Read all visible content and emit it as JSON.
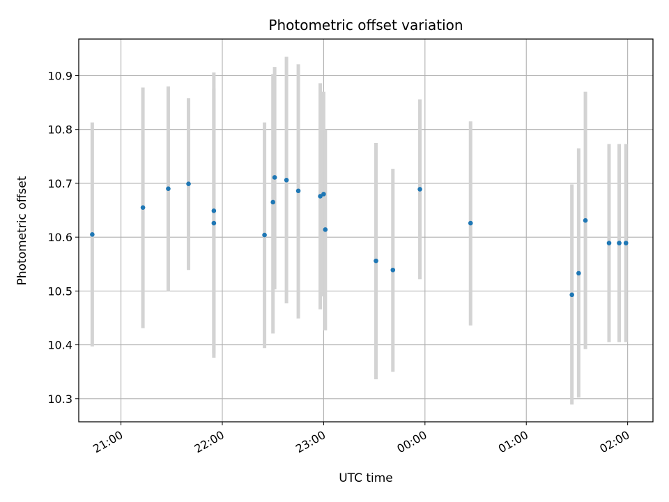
{
  "chart_data": {
    "type": "scatter",
    "title": "Photometric offset variation",
    "xlabel": "UTC time",
    "ylabel": "Photometric offset",
    "xlim": [
      "20:35",
      "02:15"
    ],
    "ylim": [
      10.257,
      10.968
    ],
    "grid": true,
    "x_ticks": [
      "21:00",
      "22:00",
      "23:00",
      "00:00",
      "01:00",
      "02:00"
    ],
    "y_ticks": [
      "10.3",
      "10.4",
      "10.5",
      "10.6",
      "10.7",
      "10.8",
      "10.9"
    ],
    "point_color": "#1f77b4",
    "errorbar_color": "#d3d3d3",
    "series": [
      {
        "points": [
          {
            "time": "20:43",
            "y": 10.605,
            "ylow": 10.397,
            "yhigh": 10.813
          },
          {
            "time": "21:13",
            "y": 10.655,
            "ylow": 10.431,
            "yhigh": 10.878
          },
          {
            "time": "21:28",
            "y": 10.69,
            "ylow": 10.5,
            "yhigh": 10.88
          },
          {
            "time": "21:40",
            "y": 10.699,
            "ylow": 10.539,
            "yhigh": 10.858
          },
          {
            "time": "21:55",
            "y": 10.649,
            "ylow": 10.384,
            "yhigh": 10.906
          },
          {
            "time": "21:55",
            "y": 10.626,
            "ylow": 10.376,
            "yhigh": 10.876
          },
          {
            "time": "22:25",
            "y": 10.604,
            "ylow": 10.394,
            "yhigh": 10.813
          },
          {
            "time": "22:30",
            "y": 10.665,
            "ylow": 10.421,
            "yhigh": 10.903
          },
          {
            "time": "22:31",
            "y": 10.711,
            "ylow": 10.503,
            "yhigh": 10.916
          },
          {
            "time": "22:38",
            "y": 10.706,
            "ylow": 10.477,
            "yhigh": 10.935
          },
          {
            "time": "22:45",
            "y": 10.686,
            "ylow": 10.449,
            "yhigh": 10.921
          },
          {
            "time": "22:58",
            "y": 10.676,
            "ylow": 10.466,
            "yhigh": 10.886
          },
          {
            "time": "23:00",
            "y": 10.68,
            "ylow": 10.49,
            "yhigh": 10.87
          },
          {
            "time": "23:01",
            "y": 10.614,
            "ylow": 10.427,
            "yhigh": 10.8
          },
          {
            "time": "23:31",
            "y": 10.556,
            "ylow": 10.336,
            "yhigh": 10.775
          },
          {
            "time": "23:41",
            "y": 10.539,
            "ylow": 10.35,
            "yhigh": 10.727
          },
          {
            "time": "23:57",
            "y": 10.689,
            "ylow": 10.522,
            "yhigh": 10.856
          },
          {
            "time": "00:27",
            "y": 10.626,
            "ylow": 10.436,
            "yhigh": 10.815
          },
          {
            "time": "01:27",
            "y": 10.493,
            "ylow": 10.289,
            "yhigh": 10.698
          },
          {
            "time": "01:31",
            "y": 10.533,
            "ylow": 10.302,
            "yhigh": 10.765
          },
          {
            "time": "01:35",
            "y": 10.631,
            "ylow": 10.392,
            "yhigh": 10.87
          },
          {
            "time": "01:49",
            "y": 10.589,
            "ylow": 10.405,
            "yhigh": 10.773
          },
          {
            "time": "01:55",
            "y": 10.589,
            "ylow": 10.405,
            "yhigh": 10.773
          },
          {
            "time": "01:59",
            "y": 10.589,
            "ylow": 10.405,
            "yhigh": 10.773
          }
        ]
      }
    ]
  }
}
